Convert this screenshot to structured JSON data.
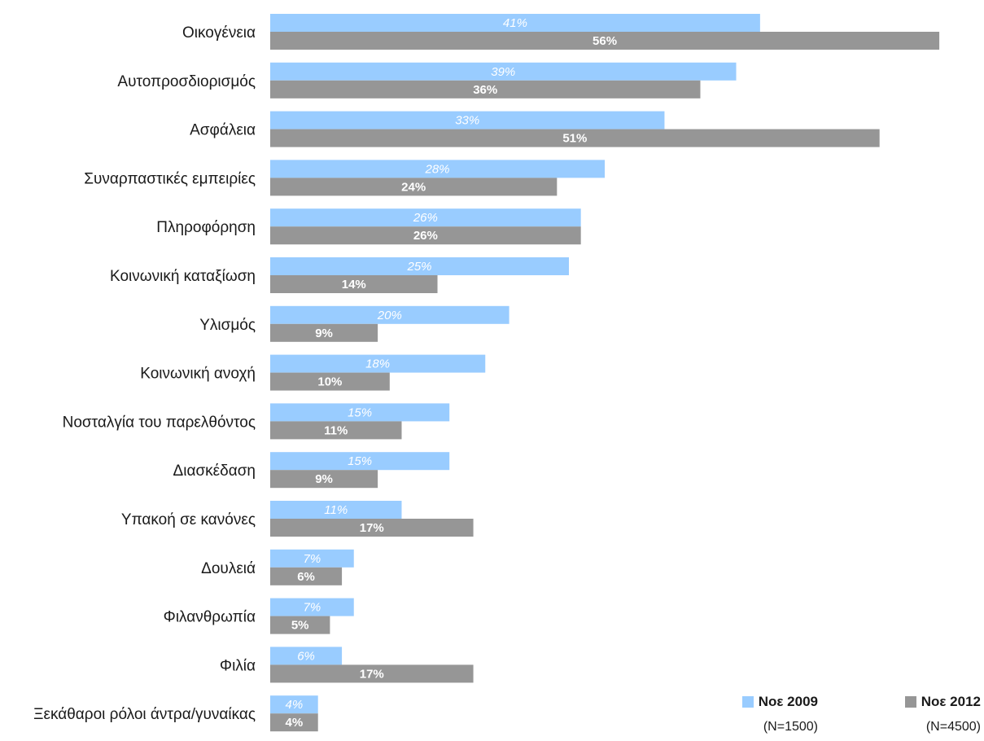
{
  "chart_data": {
    "type": "bar",
    "orientation": "horizontal",
    "categories": [
      "Οικογένεια",
      "Αυτοπροσδιορισμός",
      "Ασφάλεια",
      "Συναρπαστικές εμπειρίες",
      "Πληροφόρηση",
      "Κοινωνική καταξίωση",
      "Υλισμός",
      "Κοινωνική ανοχή",
      "Νοσταλγία του παρελθόντος",
      "Διασκέδαση",
      "Υπακοή σε κανόνες",
      "Δουλειά",
      "Φιλανθρωπία",
      "Φιλία",
      "Ξεκάθαροι ρόλοι άντρα/γυναίκας"
    ],
    "series": [
      {
        "name": "Νοε 2009",
        "sample": "(N=1500)",
        "color": "#99ccff",
        "values": [
          41,
          39,
          33,
          28,
          26,
          25,
          20,
          18,
          15,
          15,
          11,
          7,
          7,
          6,
          4
        ],
        "labels": [
          "41%",
          "39%",
          "33%",
          "28%",
          "26%",
          "25%",
          "20%",
          "18%",
          "15%",
          "15%",
          "11%",
          "7%",
          "7%",
          "6%",
          "4%"
        ]
      },
      {
        "name": "Νοε 2012",
        "sample": "(N=4500)",
        "color": "#969696",
        "values": [
          56,
          36,
          51,
          24,
          26,
          14,
          9,
          10,
          11,
          9,
          17,
          6,
          5,
          17,
          4
        ],
        "labels": [
          "56%",
          "36%",
          "51%",
          "24%",
          "26%",
          "14%",
          "9%",
          "10%",
          "11%",
          "9%",
          "17%",
          "6%",
          "5%",
          "17%",
          "4%"
        ]
      }
    ],
    "title": "",
    "xlabel": "",
    "ylabel": "",
    "xlim": [
      0,
      56
    ],
    "grid": false,
    "legend_position": "bottom-right"
  }
}
